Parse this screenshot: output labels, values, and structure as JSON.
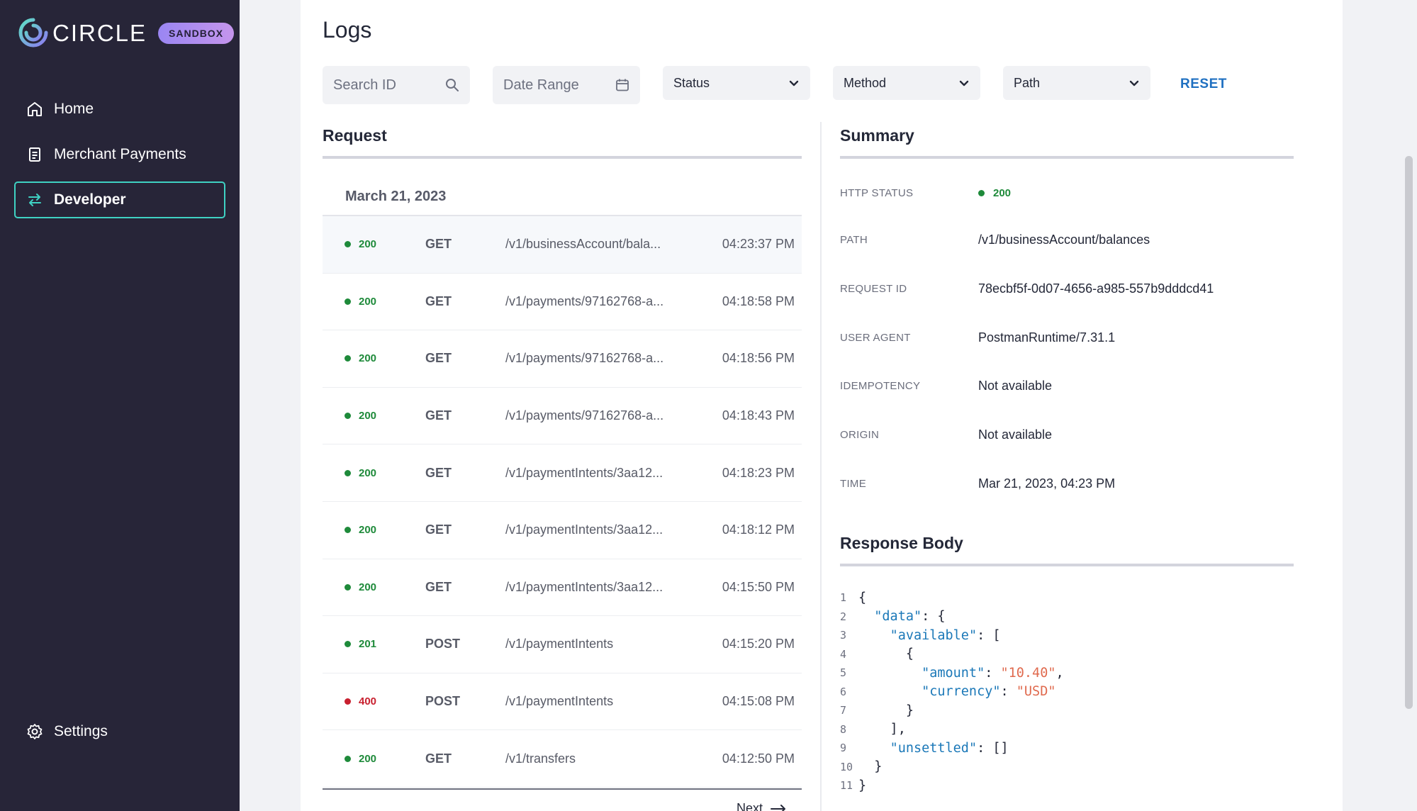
{
  "brand": {
    "name": "CIRCLE",
    "badge": "SANDBOX"
  },
  "nav": {
    "items": [
      {
        "label": "Home",
        "icon": "home-icon"
      },
      {
        "label": "Merchant Payments",
        "icon": "clipboard-icon"
      },
      {
        "label": "Developer",
        "icon": "swap-arrows-icon",
        "active": true
      }
    ],
    "settings": {
      "label": "Settings",
      "icon": "gear-icon"
    }
  },
  "page": {
    "title": "Logs"
  },
  "filters": {
    "search_placeholder": "Search ID",
    "date_placeholder": "Date Range",
    "status": "Status",
    "method": "Method",
    "path": "Path",
    "reset": "RESET"
  },
  "request": {
    "title": "Request",
    "date": "March 21, 2023",
    "rows": [
      {
        "code": "200",
        "method": "GET",
        "path": "/v1/businessAccount/bala...",
        "time": "04:23:37 PM",
        "status_color": "#1e8a3a"
      },
      {
        "code": "200",
        "method": "GET",
        "path": "/v1/payments/97162768-a...",
        "time": "04:18:58 PM",
        "status_color": "#1e8a3a"
      },
      {
        "code": "200",
        "method": "GET",
        "path": "/v1/payments/97162768-a...",
        "time": "04:18:56 PM",
        "status_color": "#1e8a3a"
      },
      {
        "code": "200",
        "method": "GET",
        "path": "/v1/payments/97162768-a...",
        "time": "04:18:43 PM",
        "status_color": "#1e8a3a"
      },
      {
        "code": "200",
        "method": "GET",
        "path": "/v1/paymentIntents/3aa12...",
        "time": "04:18:23 PM",
        "status_color": "#1e8a3a"
      },
      {
        "code": "200",
        "method": "GET",
        "path": "/v1/paymentIntents/3aa12...",
        "time": "04:18:12 PM",
        "status_color": "#1e8a3a"
      },
      {
        "code": "200",
        "method": "GET",
        "path": "/v1/paymentIntents/3aa12...",
        "time": "04:15:50 PM",
        "status_color": "#1e8a3a"
      },
      {
        "code": "201",
        "method": "POST",
        "path": "/v1/paymentIntents",
        "time": "04:15:20 PM",
        "status_color": "#1e8a3a"
      },
      {
        "code": "400",
        "method": "POST",
        "path": "/v1/paymentIntents",
        "time": "04:15:08 PM",
        "status_color": "#c8202f"
      },
      {
        "code": "200",
        "method": "GET",
        "path": "/v1/transfers",
        "time": "04:12:50 PM",
        "status_color": "#1e8a3a"
      }
    ],
    "next": "Next"
  },
  "summary": {
    "title": "Summary",
    "http_status_label": "HTTP STATUS",
    "http_status_value": "200",
    "path_label": "PATH",
    "path_value": "/v1/businessAccount/balances",
    "request_id_label": "REQUEST ID",
    "request_id_value": "78ecbf5f-0d07-4656-a985-557b9dddcd41",
    "user_agent_label": "USER AGENT",
    "user_agent_value": "PostmanRuntime/7.31.1",
    "idempotency_label": "IDEMPOTENCY",
    "idempotency_value": "Not available",
    "origin_label": "ORIGIN",
    "origin_value": "Not available",
    "time_label": "TIME",
    "time_value": "Mar 21, 2023, 04:23 PM"
  },
  "response": {
    "title": "Response Body",
    "lines": [
      {
        "n": "1",
        "tokens": [
          [
            "p",
            "{"
          ]
        ]
      },
      {
        "n": "2",
        "tokens": [
          [
            "p",
            "  "
          ],
          [
            "k",
            "\"data\""
          ],
          [
            "p",
            ": {"
          ]
        ]
      },
      {
        "n": "3",
        "tokens": [
          [
            "p",
            "    "
          ],
          [
            "k",
            "\"available\""
          ],
          [
            "p",
            ": ["
          ]
        ]
      },
      {
        "n": "4",
        "tokens": [
          [
            "p",
            "      {"
          ]
        ]
      },
      {
        "n": "5",
        "tokens": [
          [
            "p",
            "        "
          ],
          [
            "k",
            "\"amount\""
          ],
          [
            "p",
            ": "
          ],
          [
            "s",
            "\"10.40\""
          ],
          [
            "p",
            ","
          ]
        ]
      },
      {
        "n": "6",
        "tokens": [
          [
            "p",
            "        "
          ],
          [
            "k",
            "\"currency\""
          ],
          [
            "p",
            ": "
          ],
          [
            "s",
            "\"USD\""
          ]
        ]
      },
      {
        "n": "7",
        "tokens": [
          [
            "p",
            "      }"
          ]
        ]
      },
      {
        "n": "8",
        "tokens": [
          [
            "p",
            "    ],"
          ]
        ]
      },
      {
        "n": "9",
        "tokens": [
          [
            "p",
            "    "
          ],
          [
            "k",
            "\"unsettled\""
          ],
          [
            "p",
            ": []"
          ]
        ]
      },
      {
        "n": "10",
        "tokens": [
          [
            "p",
            "  }"
          ]
        ]
      },
      {
        "n": "11",
        "tokens": [
          [
            "p",
            "}"
          ]
        ]
      }
    ]
  }
}
